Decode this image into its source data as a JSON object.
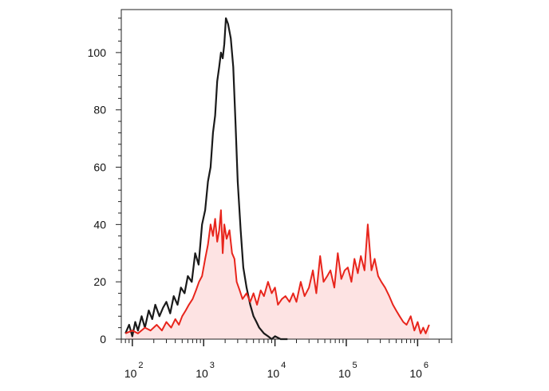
{
  "chart_data": {
    "type": "area",
    "title": "",
    "xlabel": "",
    "ylabel": "",
    "x_scale": "log",
    "xlim": [
      70,
      3000000
    ],
    "ylim": [
      0,
      115
    ],
    "grid": false,
    "legend": "none",
    "y_ticks": [
      {
        "value": 0,
        "label": "0"
      },
      {
        "value": 20,
        "label": "20"
      },
      {
        "value": 40,
        "label": "40"
      },
      {
        "value": 60,
        "label": "60"
      },
      {
        "value": 80,
        "label": "80"
      },
      {
        "value": 100,
        "label": "100"
      }
    ],
    "x_ticks": [
      {
        "value": 100,
        "base": "10",
        "exp": "2"
      },
      {
        "value": 1000,
        "base": "10",
        "exp": "3"
      },
      {
        "value": 10000,
        "base": "10",
        "exp": "4"
      },
      {
        "value": 100000,
        "base": "10",
        "exp": "5"
      },
      {
        "value": 1000000,
        "base": "10",
        "exp": "6"
      }
    ],
    "series": [
      {
        "color": "#1a1a1a",
        "fill": "none",
        "x": [
          80,
          90,
          100,
          110,
          120,
          135,
          150,
          170,
          190,
          210,
          240,
          270,
          300,
          340,
          380,
          430,
          480,
          540,
          600,
          680,
          760,
          850,
          950,
          1050,
          1150,
          1250,
          1350,
          1450,
          1550,
          1650,
          1750,
          1850,
          1950,
          2050,
          2200,
          2400,
          2600,
          2800,
          3000,
          3300,
          3600,
          4000,
          4500,
          5000,
          5500,
          6000,
          7000,
          8000,
          9000,
          10000,
          12000,
          15000
        ],
        "y": [
          2,
          5,
          1,
          6,
          3,
          8,
          4,
          10,
          7,
          12,
          8,
          11,
          13,
          9,
          15,
          12,
          18,
          16,
          22,
          20,
          30,
          26,
          40,
          45,
          55,
          60,
          72,
          78,
          90,
          95,
          100,
          98,
          103,
          112,
          110,
          105,
          95,
          75,
          55,
          38,
          25,
          18,
          12,
          8,
          6,
          4,
          2,
          1,
          0,
          1,
          0,
          0
        ]
      },
      {
        "color": "#e8251c",
        "fill": "#fde3e3",
        "x": [
          80,
          100,
          120,
          150,
          180,
          220,
          260,
          300,
          350,
          400,
          450,
          500,
          560,
          620,
          700,
          780,
          860,
          950,
          1050,
          1150,
          1250,
          1350,
          1450,
          1550,
          1650,
          1750,
          1850,
          1950,
          2100,
          2300,
          2500,
          2700,
          2900,
          3200,
          3500,
          4000,
          4500,
          5000,
          5600,
          6300,
          7000,
          8000,
          9000,
          10000,
          11000,
          12500,
          14000,
          16000,
          18000,
          20000,
          23000,
          26000,
          30000,
          34000,
          38000,
          43000,
          48000,
          54000,
          60000,
          68000,
          76000,
          85000,
          95000,
          105000,
          118000,
          130000,
          145000,
          160000,
          180000,
          200000,
          225000,
          250000,
          280000,
          310000,
          350000,
          400000,
          450000,
          500000,
          560000,
          630000,
          700000,
          800000,
          900000,
          1000000,
          1100000,
          1200000,
          1300000,
          1450000
        ],
        "y": [
          2,
          3,
          2,
          4,
          3,
          5,
          3,
          6,
          4,
          7,
          5,
          8,
          10,
          12,
          14,
          17,
          20,
          22,
          28,
          33,
          40,
          36,
          42,
          34,
          38,
          45,
          30,
          40,
          35,
          38,
          30,
          28,
          20,
          17,
          14,
          16,
          13,
          16,
          12,
          17,
          15,
          20,
          16,
          18,
          12,
          14,
          15,
          13,
          16,
          13,
          20,
          15,
          18,
          24,
          16,
          29,
          20,
          22,
          24,
          18,
          30,
          21,
          24,
          25,
          20,
          28,
          23,
          29,
          24,
          40,
          24,
          28,
          22,
          20,
          18,
          15,
          12,
          10,
          8,
          6,
          5,
          8,
          3,
          6,
          2,
          4,
          2,
          5
        ]
      }
    ]
  }
}
